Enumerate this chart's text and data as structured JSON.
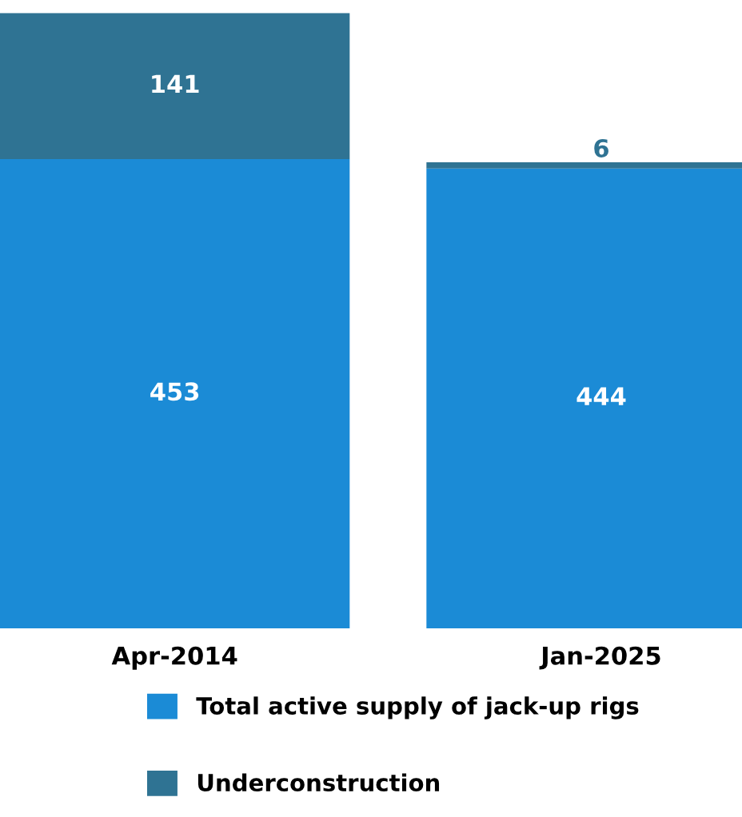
{
  "chart_data": {
    "type": "bar",
    "stacked": true,
    "categories": [
      "Apr-2014",
      "Jan-2025"
    ],
    "series": [
      {
        "name": "Total active supply of jack-up rigs",
        "color": "#1b8bd6",
        "values": [
          453,
          444
        ]
      },
      {
        "name": "Underconstruction",
        "color": "#2f7393",
        "values": [
          141,
          6
        ]
      }
    ],
    "data_labels": true,
    "legend": "bottom",
    "grid": false
  }
}
